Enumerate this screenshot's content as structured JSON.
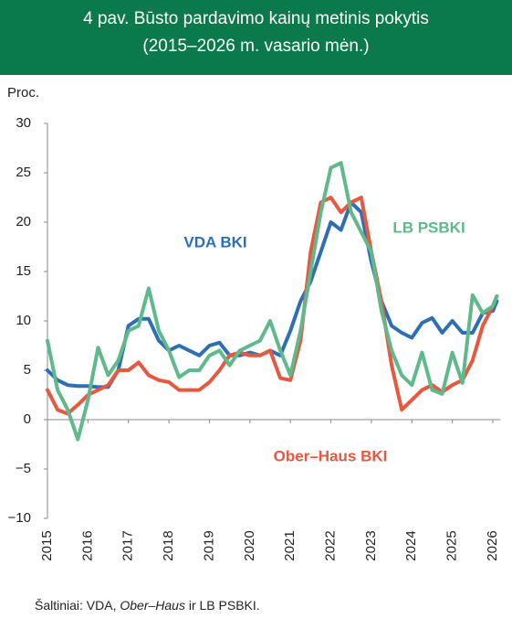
{
  "chart_data": {
    "type": "line",
    "title": "4 pav. Būsto pardavimo kainų metinis pokytis",
    "subtitle": "(2015–2026 m. vasario mėn.)",
    "y_label": "Proc.",
    "source": [
      "Šaltiniai: VDA, ",
      "Ober–Haus",
      " ir LB PSBKI."
    ],
    "x": [
      2015,
      2015.25,
      2015.5,
      2015.75,
      2016,
      2016.25,
      2016.5,
      2016.75,
      2017,
      2017.25,
      2017.5,
      2017.75,
      2018,
      2018.25,
      2018.5,
      2018.75,
      2019,
      2019.25,
      2019.5,
      2019.75,
      2020,
      2020.25,
      2020.5,
      2020.75,
      2021,
      2021.25,
      2021.5,
      2021.75,
      2022,
      2022.25,
      2022.5,
      2022.75,
      2023,
      2023.25,
      2023.5,
      2023.75,
      2024,
      2024.25,
      2024.5,
      2024.75,
      2025,
      2025.25,
      2025.5,
      2025.75,
      2026,
      2026.1
    ],
    "series": [
      {
        "name": "VDA BKI",
        "color": "#2e6fb4",
        "values": [
          5,
          4,
          3.5,
          3.4,
          3.4,
          3.3,
          3.3,
          5,
          9.5,
          10.2,
          10.2,
          8,
          7,
          7.5,
          7,
          6.5,
          7.5,
          7.8,
          6.5,
          6.5,
          6.8,
          6.5,
          7,
          6.5,
          9,
          12,
          14,
          17,
          20,
          19.2,
          22,
          21,
          16,
          12,
          9.5,
          8.8,
          8.3,
          9.8,
          10.3,
          8.8,
          10,
          8.8,
          8.8,
          10.8,
          11,
          12
        ]
      },
      {
        "name": "Ober–Haus BKI",
        "color": "#e8573f",
        "values": [
          3,
          1,
          0.6,
          1.5,
          2.5,
          3,
          3.5,
          5,
          5,
          5.8,
          4.5,
          4,
          3.8,
          3,
          3,
          3,
          3.8,
          5,
          6.5,
          6.8,
          6.5,
          6.5,
          7,
          4.2,
          4,
          8,
          17,
          22,
          22.5,
          21,
          22,
          22.5,
          17,
          12,
          5.5,
          1,
          2,
          3,
          3.5,
          2.8,
          3.5,
          4,
          6,
          9.5,
          11.5,
          12.5
        ]
      },
      {
        "name": "LB PSBKI",
        "color": "#5fb98a",
        "values": [
          8,
          3,
          1,
          -2,
          2,
          7.3,
          4.5,
          6,
          9,
          9.5,
          13.3,
          9,
          7,
          4.3,
          5,
          5,
          6.5,
          7,
          5.5,
          7,
          7.5,
          8,
          10,
          7,
          4.5,
          9,
          15,
          21,
          25.5,
          26,
          21,
          19,
          17,
          11,
          7,
          4.5,
          3.5,
          6.8,
          3,
          2.6,
          6.8,
          3.7,
          12.6,
          10.8,
          11.5,
          12.5
        ]
      }
    ],
    "xlim": [
      2015,
      2026.1
    ],
    "xticks": [
      2015,
      2016,
      2017,
      2018,
      2019,
      2020,
      2021,
      2022,
      2023,
      2024,
      2025,
      2026
    ],
    "ylim": [
      -10,
      30
    ],
    "yticks": [
      {
        "value": -10,
        "label": "−10"
      },
      {
        "value": -5,
        "label": "−5"
      },
      0,
      5,
      10,
      15,
      20,
      25,
      30
    ]
  }
}
